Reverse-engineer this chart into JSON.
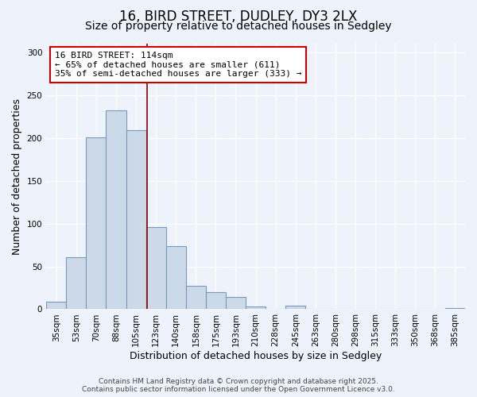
{
  "title": "16, BIRD STREET, DUDLEY, DY3 2LX",
  "subtitle": "Size of property relative to detached houses in Sedgley",
  "xlabel": "Distribution of detached houses by size in Sedgley",
  "ylabel": "Number of detached properties",
  "categories": [
    "35sqm",
    "53sqm",
    "70sqm",
    "88sqm",
    "105sqm",
    "123sqm",
    "140sqm",
    "158sqm",
    "175sqm",
    "193sqm",
    "210sqm",
    "228sqm",
    "245sqm",
    "263sqm",
    "280sqm",
    "298sqm",
    "315sqm",
    "333sqm",
    "350sqm",
    "368sqm",
    "385sqm"
  ],
  "values": [
    9,
    61,
    201,
    232,
    209,
    96,
    74,
    27,
    20,
    14,
    3,
    0,
    4,
    0,
    0,
    0,
    0,
    0,
    0,
    0,
    1
  ],
  "bar_color": "#ccd9e8",
  "bar_edge_color": "#7799bb",
  "marker_bin_index": 4,
  "marker_line_color": "#880000",
  "annotation_title": "16 BIRD STREET: 114sqm",
  "annotation_line1": "← 65% of detached houses are smaller (611)",
  "annotation_line2": "35% of semi-detached houses are larger (333) →",
  "annotation_box_color": "#ffffff",
  "annotation_box_edge": "#cc0000",
  "ylim": [
    0,
    310
  ],
  "yticks": [
    0,
    50,
    100,
    150,
    200,
    250,
    300
  ],
  "footer1": "Contains HM Land Registry data © Crown copyright and database right 2025.",
  "footer2": "Contains public sector information licensed under the Open Government Licence v3.0.",
  "bg_color": "#eef2fa",
  "grid_color": "#ffffff",
  "title_fontsize": 12,
  "subtitle_fontsize": 10,
  "axis_label_fontsize": 9,
  "tick_fontsize": 7.5,
  "footer_fontsize": 6.5
}
